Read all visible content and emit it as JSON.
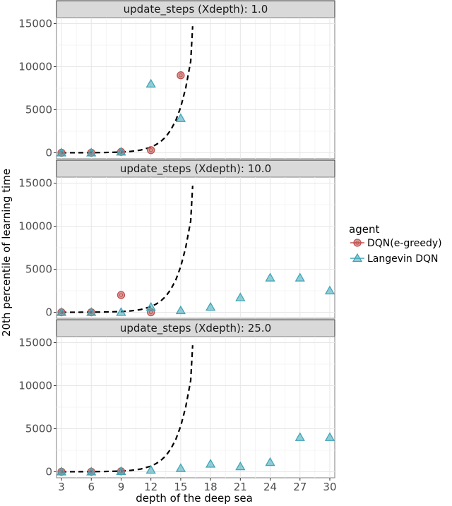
{
  "chart_data": {
    "type": "scatter",
    "xlabel": "depth of the deep sea",
    "ylabel": "20th percentile of learning time",
    "x_ticks": [
      3,
      6,
      9,
      12,
      15,
      18,
      21,
      24,
      27,
      30
    ],
    "y_ticks": [
      0,
      5000,
      10000,
      15000
    ],
    "xlim": [
      2.5,
      30.5
    ],
    "ylim": [
      -700,
      15700
    ],
    "grid": true,
    "legend": {
      "title": "agent",
      "position": "right",
      "entries": [
        "DQN(e-greedy)",
        "Langevin DQN"
      ]
    },
    "colors": {
      "DQN(e-greedy)": "#c0504d",
      "Langevin DQN": "#3fa6b8",
      "reference_line": "#000000"
    },
    "reference_curve": {
      "style": "dashed",
      "x": [
        3,
        5,
        7,
        9,
        10,
        11,
        12,
        12.5,
        13,
        13.5,
        14,
        14.5,
        15,
        15.5,
        16,
        16.2
      ],
      "y": [
        0,
        5,
        20,
        80,
        160,
        320,
        650,
        930,
        1320,
        1860,
        2650,
        3750,
        5300,
        7500,
        10600,
        14700
      ]
    },
    "panels": [
      {
        "title": "update_steps (Xdepth): 1.0",
        "series": [
          {
            "name": "DQN(e-greedy)",
            "marker": "circle",
            "x": [
              3,
              6,
              9,
              12,
              15
            ],
            "y": [
              0,
              0,
              100,
              300,
              9000
            ]
          },
          {
            "name": "Langevin DQN",
            "marker": "triangle",
            "x": [
              3,
              6,
              9,
              12,
              15
            ],
            "y": [
              0,
              0,
              100,
              8000,
              4000
            ]
          }
        ]
      },
      {
        "title": "update_steps (Xdepth): 10.0",
        "series": [
          {
            "name": "DQN(e-greedy)",
            "marker": "circle",
            "x": [
              3,
              6,
              9,
              12
            ],
            "y": [
              0,
              0,
              2000,
              0
            ]
          },
          {
            "name": "Langevin DQN",
            "marker": "triangle",
            "x": [
              3,
              6,
              9,
              12,
              15,
              18,
              21,
              24,
              27,
              30
            ],
            "y": [
              0,
              0,
              0,
              600,
              200,
              600,
              1700,
              4000,
              4000,
              2500
            ]
          }
        ]
      },
      {
        "title": "update_steps (Xdepth): 25.0",
        "series": [
          {
            "name": "DQN(e-greedy)",
            "marker": "circle",
            "x": [
              3,
              6,
              9
            ],
            "y": [
              0,
              0,
              50
            ]
          },
          {
            "name": "Langevin DQN",
            "marker": "triangle",
            "x": [
              3,
              6,
              9,
              12,
              15,
              18,
              21,
              24,
              27,
              30
            ],
            "y": [
              0,
              0,
              50,
              200,
              400,
              900,
              600,
              1100,
              4000,
              4000
            ]
          }
        ]
      }
    ]
  }
}
